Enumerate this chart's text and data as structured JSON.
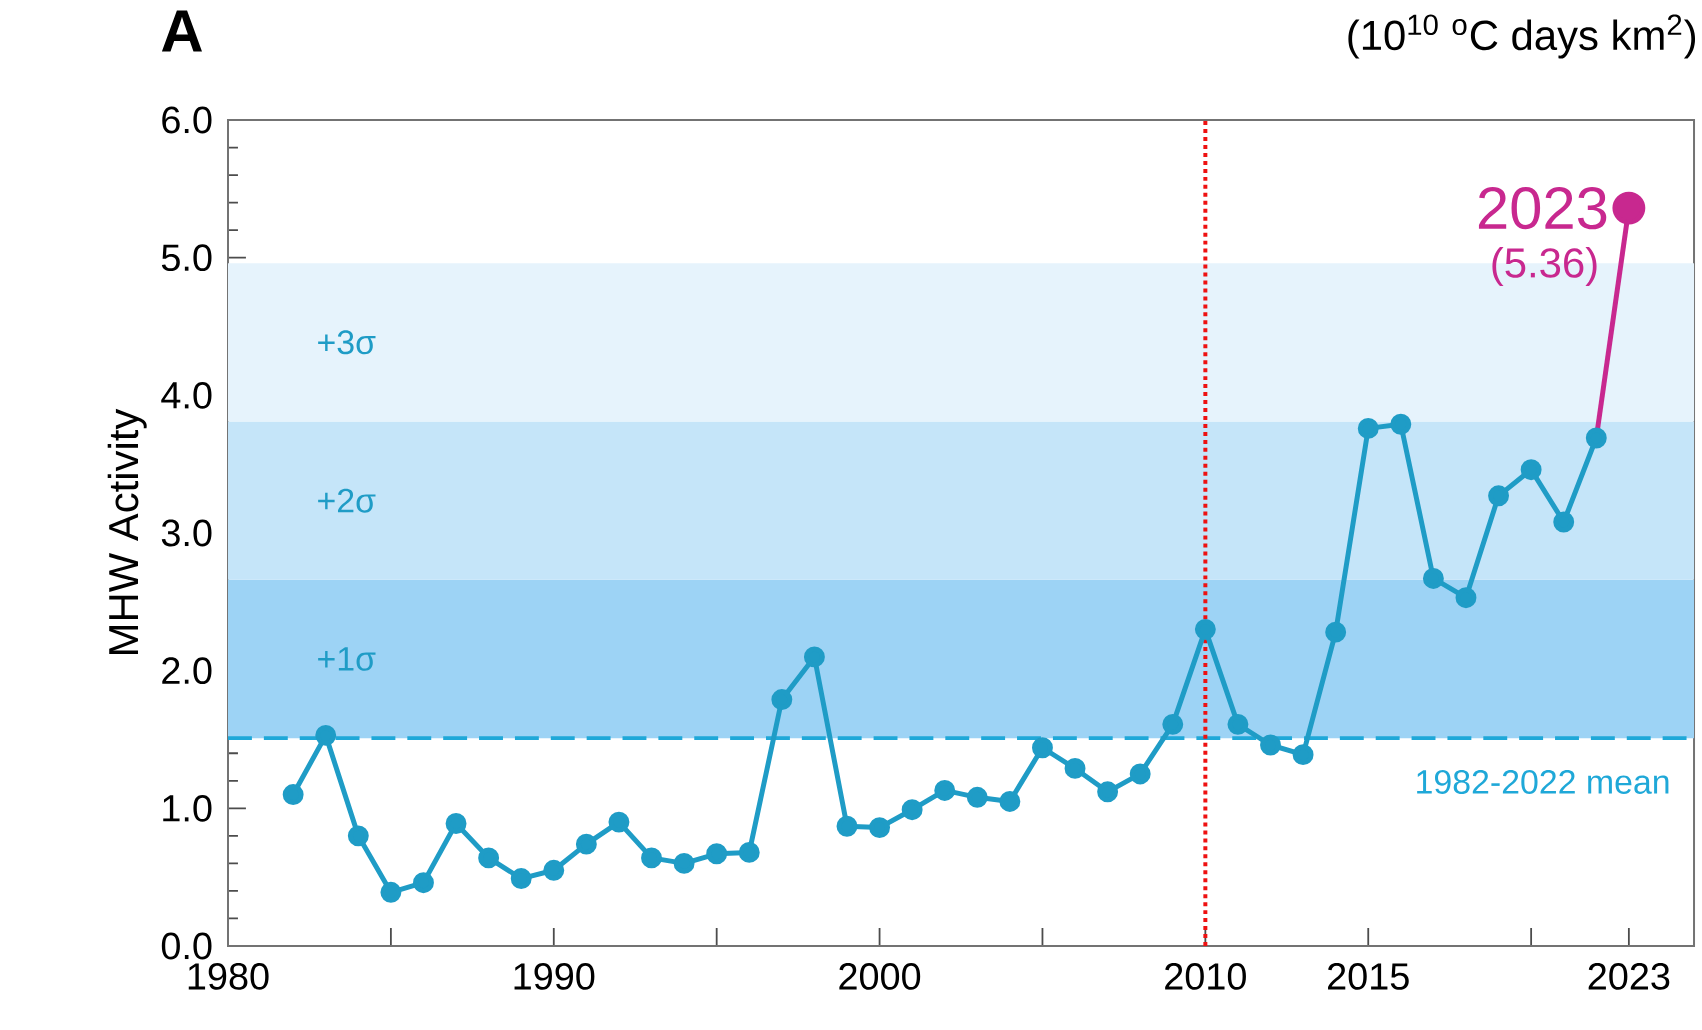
{
  "chart_data": {
    "type": "line",
    "title": "A",
    "ylabel": "MHW Activity",
    "x": [
      1982,
      1983,
      1984,
      1985,
      1986,
      1987,
      1988,
      1989,
      1990,
      1991,
      1992,
      1993,
      1994,
      1995,
      1996,
      1997,
      1998,
      1999,
      2000,
      2001,
      2002,
      2003,
      2004,
      2005,
      2006,
      2007,
      2008,
      2009,
      2010,
      2011,
      2012,
      2013,
      2014,
      2015,
      2016,
      2017,
      2018,
      2019,
      2020,
      2021,
      2022
    ],
    "series": [
      {
        "color": "#1f9cc6",
        "values": [
          1.1,
          1.53,
          0.8,
          0.39,
          0.46,
          0.89,
          0.64,
          0.49,
          0.55,
          0.74,
          0.9,
          0.64,
          0.6,
          0.67,
          0.68,
          1.79,
          2.1,
          0.87,
          0.86,
          0.99,
          1.13,
          1.08,
          1.05,
          1.44,
          1.29,
          1.12,
          1.25,
          1.61,
          2.3,
          1.61,
          1.46,
          1.39,
          2.28,
          3.76,
          3.79,
          2.67,
          2.53,
          3.27,
          3.46,
          3.08,
          3.69
        ]
      },
      {
        "color": "#c8288f",
        "x": [
          2022,
          2023
        ],
        "values": [
          3.69,
          5.36
        ],
        "marker": "circle"
      }
    ],
    "marker": "circle",
    "line_style": "solid",
    "grid": false,
    "xlim": [
      1980,
      2025
    ],
    "ylim": [
      0,
      6
    ],
    "xticks": [
      1980,
      {
        "value": 1985,
        "label": null
      },
      1990,
      {
        "value": 1995,
        "label": null
      },
      2000,
      {
        "value": 2005,
        "label": null
      },
      2010,
      2015,
      {
        "value": 2020,
        "label": null
      },
      2023
    ],
    "yticks": [
      {
        "value": 0,
        "label": "0.0"
      },
      {
        "value": 1,
        "label": "1.0"
      },
      {
        "value": 2,
        "label": "2.0"
      },
      {
        "value": 3,
        "label": "3.0"
      },
      {
        "value": 4,
        "label": "4.0"
      },
      {
        "value": 5,
        "label": "5.0"
      },
      {
        "value": 6,
        "label": "6.0"
      }
    ],
    "bands": [
      {
        "axis": "y",
        "from": 1.51,
        "to": 2.66,
        "label": "+1σ",
        "color": "#9dd3f5"
      },
      {
        "axis": "y",
        "from": 2.66,
        "to": 3.81,
        "label": "+2σ",
        "color": "#c5e5f9"
      },
      {
        "axis": "y",
        "from": 3.81,
        "to": 4.96,
        "label": "+3σ",
        "color": "#e6f3fc"
      }
    ],
    "ref_lines": [
      {
        "axis": "y",
        "value": 1.51,
        "label": "1982-2022 mean",
        "color": "#1fa8d8",
        "line_style": "dashed"
      },
      {
        "axis": "x",
        "value": 2010,
        "color": "#ee1111",
        "line_style": "dotted"
      }
    ],
    "annotations": [
      {
        "text": "2023",
        "x": 2023,
        "y": 5.36
      },
      {
        "text": "(5.36)",
        "x": 2023,
        "y": 5.36
      },
      "(10$^{10}$ $^{o}$C days km$^{2}$)"
    ]
  }
}
